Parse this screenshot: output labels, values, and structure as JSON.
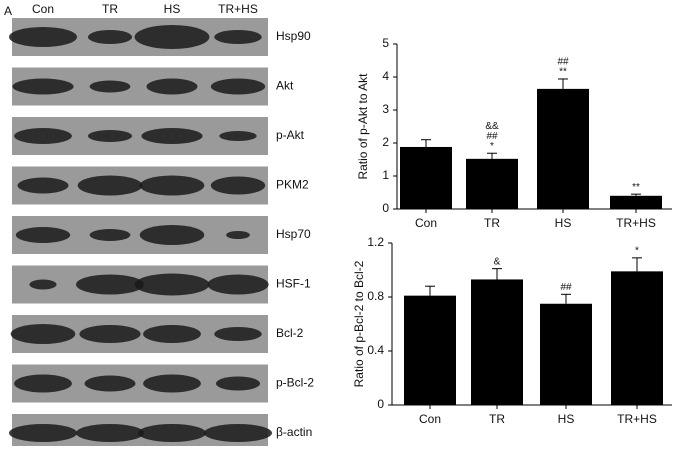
{
  "panel_label": "A",
  "blot": {
    "lanes": [
      "Con",
      "TR",
      "HS",
      "TR+HS"
    ],
    "proteins": [
      "Hsp90",
      "Akt",
      "p-Akt",
      "PKM2",
      "Hsp70",
      "HSF-1",
      "Bcl-2",
      "p-Bcl-2",
      "β-actin"
    ]
  },
  "chart_data": [
    {
      "type": "bar",
      "y_label": "Ratio of p-Akt to Akt",
      "categories": [
        "Con",
        "TR",
        "HS",
        "TR+HS"
      ],
      "values": [
        1.88,
        1.52,
        3.64,
        0.4
      ],
      "errors": [
        0.22,
        0.17,
        0.3,
        0.05
      ],
      "annotations": [
        [],
        [
          "&&",
          "##",
          "*"
        ],
        [
          "##",
          "**"
        ],
        [
          "**"
        ]
      ],
      "color": "#000000",
      "ylim": [
        0,
        5
      ],
      "yticks": [
        0,
        1,
        2,
        3,
        4,
        5
      ]
    },
    {
      "type": "bar",
      "y_label": "Ratio of p-Bcl-2 to Bcl-2",
      "categories": [
        "Con",
        "TR",
        "HS",
        "TR+HS"
      ],
      "values": [
        0.81,
        0.93,
        0.75,
        0.99
      ],
      "errors": [
        0.07,
        0.08,
        0.07,
        0.1
      ],
      "annotations": [
        [],
        [
          "&"
        ],
        [
          "##"
        ],
        [
          "*"
        ]
      ],
      "color": "#000000",
      "ylim": [
        0,
        1.2
      ],
      "yticks": [
        0,
        0.4,
        0.8,
        1.2
      ]
    }
  ]
}
